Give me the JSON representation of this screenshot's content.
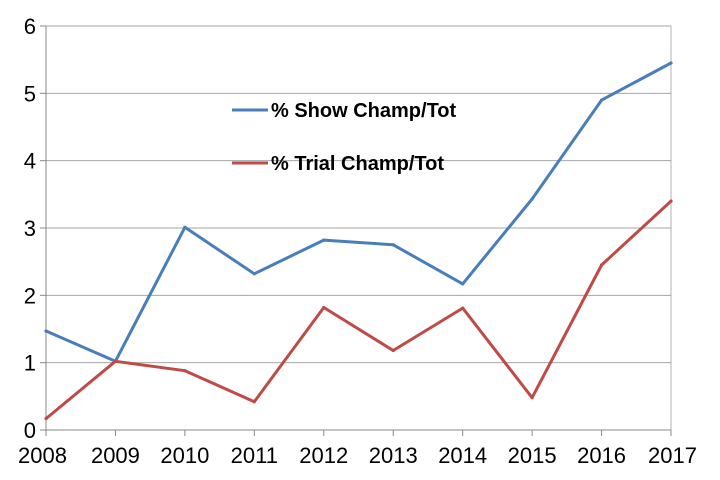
{
  "chart_data": {
    "type": "line",
    "title": "",
    "xlabel": "",
    "ylabel": "",
    "categories": [
      "2008",
      "2009",
      "2010",
      "2011",
      "2012",
      "2013",
      "2014",
      "2015",
      "2016",
      "2017"
    ],
    "y_ticks": [
      "0",
      "1",
      "2",
      "3",
      "4",
      "5",
      "6"
    ],
    "ylim": [
      0,
      6
    ],
    "grid": true,
    "legend_position": "center",
    "series": [
      {
        "name": "% Show Champ/Tot",
        "color": "#4a7ebb",
        "values": [
          1.47,
          1.02,
          3.01,
          2.32,
          2.82,
          2.75,
          2.17,
          3.43,
          4.9,
          5.45
        ]
      },
      {
        "name": "% Trial Champ/Tot",
        "color": "#be4b48",
        "values": [
          0.17,
          1.02,
          0.88,
          0.42,
          1.82,
          1.18,
          1.81,
          0.48,
          2.45,
          3.4
        ]
      }
    ]
  }
}
